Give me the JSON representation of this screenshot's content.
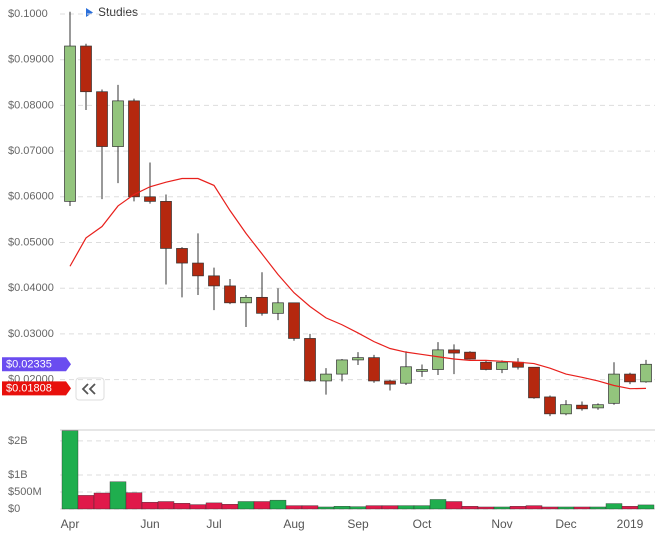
{
  "toolbar": {
    "label": "Studies"
  },
  "chart_data": [
    {
      "type": "candlestick",
      "categories": [
        "Apr",
        null,
        null,
        null,
        null,
        "Jun",
        null,
        null,
        null,
        "Jul",
        null,
        null,
        null,
        null,
        "Aug",
        null,
        null,
        null,
        "Sep",
        null,
        null,
        null,
        "Oct",
        null,
        null,
        null,
        null,
        "Nov",
        null,
        null,
        null,
        "Dec",
        null,
        null,
        null,
        "2019",
        null
      ],
      "series": [
        {
          "name": "open",
          "values": [
            0.059,
            0.093,
            0.083,
            0.071,
            0.081,
            0.06,
            0.059,
            0.0487,
            0.0455,
            0.0427,
            0.0405,
            0.0368,
            0.038,
            0.0345,
            0.0368,
            0.029,
            0.0197,
            0.0212,
            0.0243,
            0.0248,
            0.0197,
            0.0192,
            0.0218,
            0.0222,
            0.0265,
            0.026,
            0.0238,
            0.0222,
            0.0238,
            0.0227,
            0.0162,
            0.0125,
            0.0144,
            0.0138,
            0.0148,
            0.0212,
            0.0195
          ]
        },
        {
          "name": "high",
          "values": [
            0.1005,
            0.0935,
            0.0835,
            0.0845,
            0.0815,
            0.0675,
            0.0605,
            0.049,
            0.052,
            0.0445,
            0.042,
            0.0385,
            0.0435,
            0.04,
            0.0368,
            0.03,
            0.0225,
            0.0245,
            0.026,
            0.0254,
            0.02,
            0.0262,
            0.0233,
            0.0282,
            0.0277,
            0.0262,
            0.0242,
            0.0242,
            0.0247,
            0.0227,
            0.0165,
            0.0155,
            0.0152,
            0.0148,
            0.0238,
            0.0215,
            0.0243
          ]
        },
        {
          "name": "low",
          "values": [
            0.058,
            0.079,
            0.0595,
            0.063,
            0.059,
            0.0585,
            0.0408,
            0.038,
            0.0385,
            0.0352,
            0.0365,
            0.0315,
            0.034,
            0.033,
            0.0285,
            0.0195,
            0.0167,
            0.0196,
            0.0232,
            0.0193,
            0.0176,
            0.0188,
            0.0206,
            0.021,
            0.0212,
            0.0244,
            0.022,
            0.0214,
            0.0222,
            0.0158,
            0.012,
            0.0122,
            0.0132,
            0.0134,
            0.0145,
            0.019,
            0.0193
          ]
        },
        {
          "name": "close",
          "values": [
            0.093,
            0.083,
            0.071,
            0.081,
            0.06,
            0.059,
            0.0487,
            0.0455,
            0.0427,
            0.0405,
            0.0368,
            0.038,
            0.0345,
            0.0368,
            0.029,
            0.0197,
            0.0212,
            0.0243,
            0.0248,
            0.0197,
            0.019,
            0.0228,
            0.0222,
            0.0265,
            0.0258,
            0.0245,
            0.0222,
            0.0238,
            0.0227,
            0.016,
            0.0125,
            0.0145,
            0.0136,
            0.0145,
            0.0212,
            0.0195,
            0.02335
          ]
        },
        {
          "name": "ma",
          "color": "#e8201c",
          "values": [
            0.0448,
            0.051,
            0.0535,
            0.058,
            0.0605,
            0.0622,
            0.0632,
            0.064,
            0.064,
            0.0625,
            0.057,
            0.052,
            0.0475,
            0.043,
            0.039,
            0.036,
            0.0335,
            0.032,
            0.0302,
            0.0283,
            0.0268,
            0.026,
            0.0255,
            0.025,
            0.0245,
            0.0242,
            0.0242,
            0.024,
            0.0238,
            0.0235,
            0.0225,
            0.0212,
            0.0205,
            0.0197,
            0.0187,
            0.018,
            0.01808
          ]
        }
      ],
      "up_color": "#93c47d",
      "down_color": "#b5280f",
      "ylim": [
        0.0094,
        0.1022
      ],
      "yticks": [
        {
          "value": 0.1,
          "label": "$0.1000"
        },
        {
          "value": 0.09,
          "label": "$0.09000"
        },
        {
          "value": 0.08,
          "label": "$0.08000"
        },
        {
          "value": 0.07,
          "label": "$0.07000"
        },
        {
          "value": 0.06,
          "label": "$0.06000"
        },
        {
          "value": 0.05,
          "label": "$0.05000"
        },
        {
          "value": 0.04,
          "label": "$0.04000"
        },
        {
          "value": 0.03,
          "label": "$0.03000"
        },
        {
          "value": 0.02,
          "label": "$0.02000"
        }
      ],
      "price_labels": [
        {
          "value": 0.02335,
          "label": "$0.02335",
          "color": "#6a4cf0"
        },
        {
          "value": 0.01808,
          "label": "$0.01808",
          "color": "#e8100c"
        }
      ],
      "grid": true
    },
    {
      "type": "bar",
      "values": [
        2300000000,
        400000000,
        470000000,
        800000000,
        480000000,
        200000000,
        220000000,
        170000000,
        130000000,
        180000000,
        140000000,
        220000000,
        220000000,
        260000000,
        100000000,
        100000000,
        60000000,
        80000000,
        70000000,
        100000000,
        100000000,
        100000000,
        100000000,
        280000000,
        220000000,
        80000000,
        60000000,
        60000000,
        80000000,
        100000000,
        60000000,
        60000000,
        60000000,
        60000000,
        160000000,
        80000000,
        120000000
      ],
      "up_color": "#1fae4e",
      "down_color": "#e0194a",
      "ylim": [
        0,
        2320000000
      ],
      "yticks": [
        {
          "value": 2000000000,
          "label": "$2B"
        },
        {
          "value": 1000000000,
          "label": "$1B"
        },
        {
          "value": 500000000,
          "label": "$500M"
        },
        {
          "value": 0,
          "label": "$0"
        }
      ],
      "grid": true
    }
  ]
}
